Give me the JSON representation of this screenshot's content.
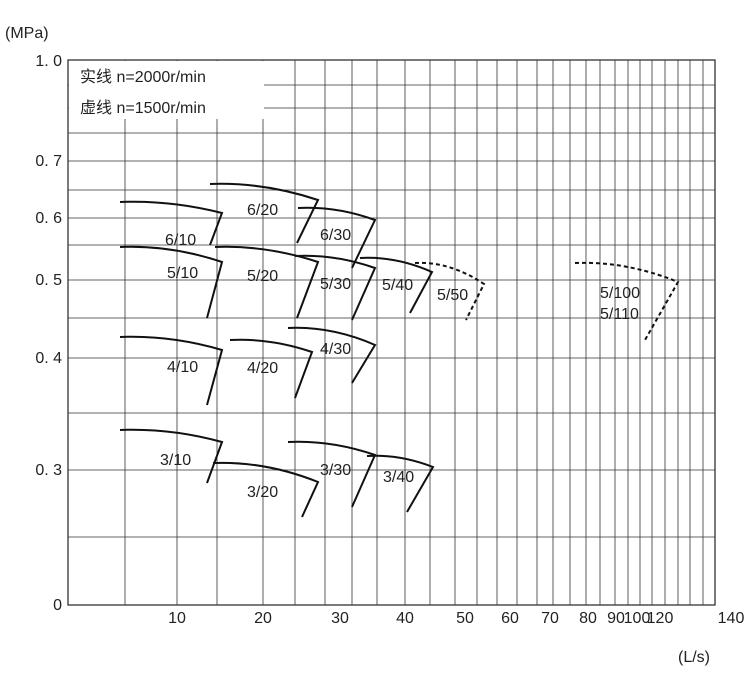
{
  "y_unit": "(MPa)",
  "x_unit": "(L/s)",
  "legend": [
    "实线 n=2000r/min",
    "虚线 n=1500r/min"
  ],
  "yticks": [
    "1. 0",
    "0. 7",
    "0. 6",
    "0. 5",
    "0. 4",
    "0. 3",
    "0"
  ],
  "xticks": [
    "10",
    "20",
    "30",
    "40",
    "50",
    "60",
    "70",
    "80",
    "90",
    "100",
    "120",
    "140"
  ],
  "curves": [
    "6/10",
    "6/20",
    "6/30",
    "5/10",
    "5/20",
    "5/30",
    "5/40",
    "5/50",
    "5/100",
    "5/110",
    "4/10",
    "4/20",
    "4/30",
    "3/10",
    "3/20",
    "3/30",
    "3/40"
  ]
}
